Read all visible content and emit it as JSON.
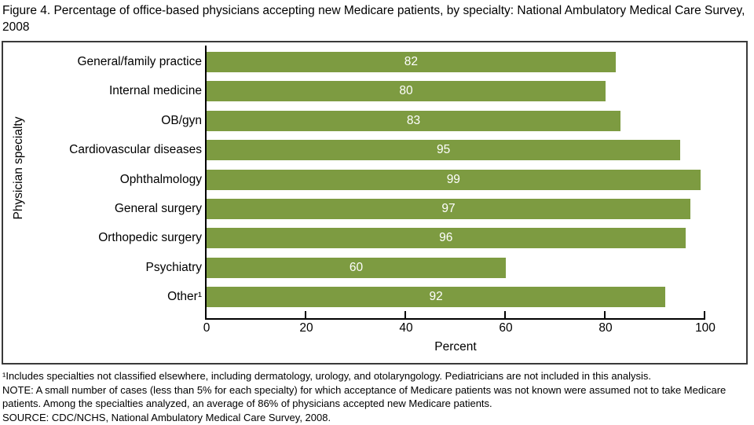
{
  "title": "Figure 4. Percentage of office-based physicians accepting new Medicare patients, by specialty: National Ambulatory Medical Care Survey, 2008",
  "chart_data": {
    "type": "bar",
    "orientation": "horizontal",
    "title": "Figure 4. Percentage of office-based physicians accepting new Medicare patients, by specialty: National Ambulatory Medical Care Survey, 2008",
    "categories": [
      "General/family practice",
      "Internal medicine",
      "OB/gyn",
      "Cardiovascular diseases",
      "Ophthalmology",
      "General surgery",
      "Orthopedic surgery",
      "Psychiatry",
      "Other¹"
    ],
    "values": [
      82,
      80,
      83,
      95,
      99,
      97,
      96,
      60,
      92
    ],
    "xlabel": "Percent",
    "ylabel": "Physician specialty",
    "xlim": [
      0,
      100
    ],
    "xticks": [
      0,
      20,
      40,
      60,
      80,
      100
    ],
    "grid": false,
    "legend": "none",
    "value_label_position": "inside-center",
    "bar_color": "#7D9B41",
    "value_label_color": "#FFFFFF",
    "axis_color": "#000000"
  },
  "footnotes": [
    "¹Includes specialties not classified elsewhere, including dermatology, urology, and otolaryngology. Pediatricians are not included in this analysis.",
    "NOTE: A small number of cases (less than 5% for each specialty) for which acceptance of Medicare patients was not known were assumed not to take Medicare patients. Among the specialties analyzed, an average of 86% of physicians accepted new Medicare patients.",
    "SOURCE: CDC/NCHS, National Ambulatory Medical Care Survey, 2008."
  ]
}
